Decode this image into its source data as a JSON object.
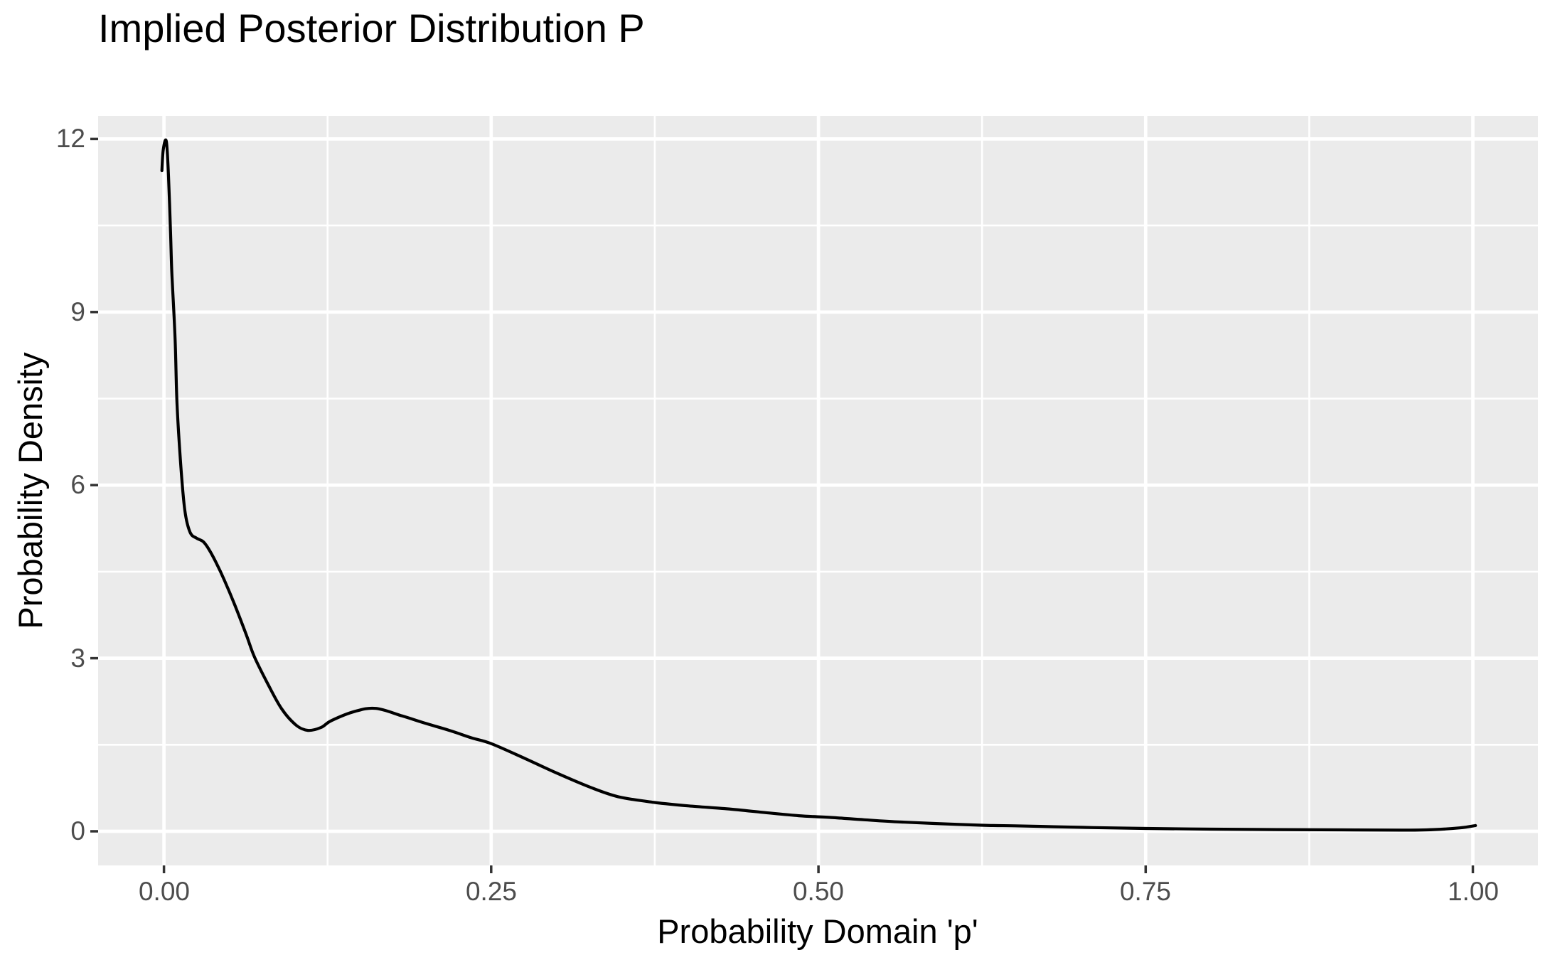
{
  "chart_data": {
    "type": "line",
    "subtype": "density",
    "title": "Implied Posterior Distribution P",
    "xlabel": "Probability Domain 'p'",
    "ylabel": "Probability Density",
    "legend_position": "none",
    "grid": "major+minor",
    "xlim": [
      -0.0503,
      1.0497
    ],
    "ylim": [
      -0.591,
      12.399
    ],
    "x_ticks": [
      {
        "value": 0.0,
        "label": "0.00"
      },
      {
        "value": 0.25,
        "label": "0.25"
      },
      {
        "value": 0.5,
        "label": "0.50"
      },
      {
        "value": 0.75,
        "label": "0.75"
      },
      {
        "value": 1.0,
        "label": "1.00"
      }
    ],
    "y_ticks": [
      {
        "value": 0,
        "label": "0"
      },
      {
        "value": 3,
        "label": "3"
      },
      {
        "value": 6,
        "label": "6"
      },
      {
        "value": 9,
        "label": "9"
      },
      {
        "value": 12,
        "label": "12"
      }
    ],
    "x_minor_breaks": [
      0.125,
      0.375,
      0.625,
      0.875
    ],
    "y_minor_breaks": [
      1.5,
      4.5,
      7.5,
      10.5
    ],
    "series": [
      {
        "name": "posterior_density_curve",
        "color": "#000000",
        "points": [
          [
            -0.0016,
            11.45
          ],
          [
            -0.0005,
            11.82
          ],
          [
            0.0018,
            11.96
          ],
          [
            0.0035,
            11.35
          ],
          [
            0.005,
            10.4
          ],
          [
            0.006,
            9.7
          ],
          [
            0.0085,
            8.55
          ],
          [
            0.01,
            7.4
          ],
          [
            0.013,
            6.3
          ],
          [
            0.016,
            5.55
          ],
          [
            0.02,
            5.18
          ],
          [
            0.025,
            5.08
          ],
          [
            0.03,
            5.02
          ],
          [
            0.034,
            4.9
          ],
          [
            0.04,
            4.65
          ],
          [
            0.046,
            4.36
          ],
          [
            0.054,
            3.93
          ],
          [
            0.063,
            3.4
          ],
          [
            0.069,
            3.03
          ],
          [
            0.079,
            2.57
          ],
          [
            0.09,
            2.12
          ],
          [
            0.101,
            1.84
          ],
          [
            0.11,
            1.75
          ],
          [
            0.12,
            1.8
          ],
          [
            0.128,
            1.92
          ],
          [
            0.146,
            2.08
          ],
          [
            0.162,
            2.13
          ],
          [
            0.182,
            2.0
          ],
          [
            0.2,
            1.87
          ],
          [
            0.218,
            1.75
          ],
          [
            0.235,
            1.62
          ],
          [
            0.25,
            1.52
          ],
          [
            0.276,
            1.26
          ],
          [
            0.3,
            1.01
          ],
          [
            0.325,
            0.77
          ],
          [
            0.347,
            0.6
          ],
          [
            0.375,
            0.5
          ],
          [
            0.401,
            0.44
          ],
          [
            0.43,
            0.39
          ],
          [
            0.457,
            0.33
          ],
          [
            0.485,
            0.27
          ],
          [
            0.51,
            0.24
          ],
          [
            0.535,
            0.2
          ],
          [
            0.56,
            0.165
          ],
          [
            0.59,
            0.135
          ],
          [
            0.625,
            0.105
          ],
          [
            0.65,
            0.095
          ],
          [
            0.68,
            0.08
          ],
          [
            0.71,
            0.065
          ],
          [
            0.75,
            0.05
          ],
          [
            0.8,
            0.038
          ],
          [
            0.85,
            0.03
          ],
          [
            0.9,
            0.025
          ],
          [
            0.945,
            0.02
          ],
          [
            0.97,
            0.03
          ],
          [
            0.99,
            0.06
          ],
          [
            1.002,
            0.1
          ]
        ]
      }
    ]
  },
  "style": {
    "panel_bg": "#EBEBEB",
    "grid_color": "#FFFFFF",
    "tick_mark_color": "#333333",
    "axis_text_color": "#4D4D4D",
    "title_color": "#000000",
    "curve_color": "#000000"
  }
}
